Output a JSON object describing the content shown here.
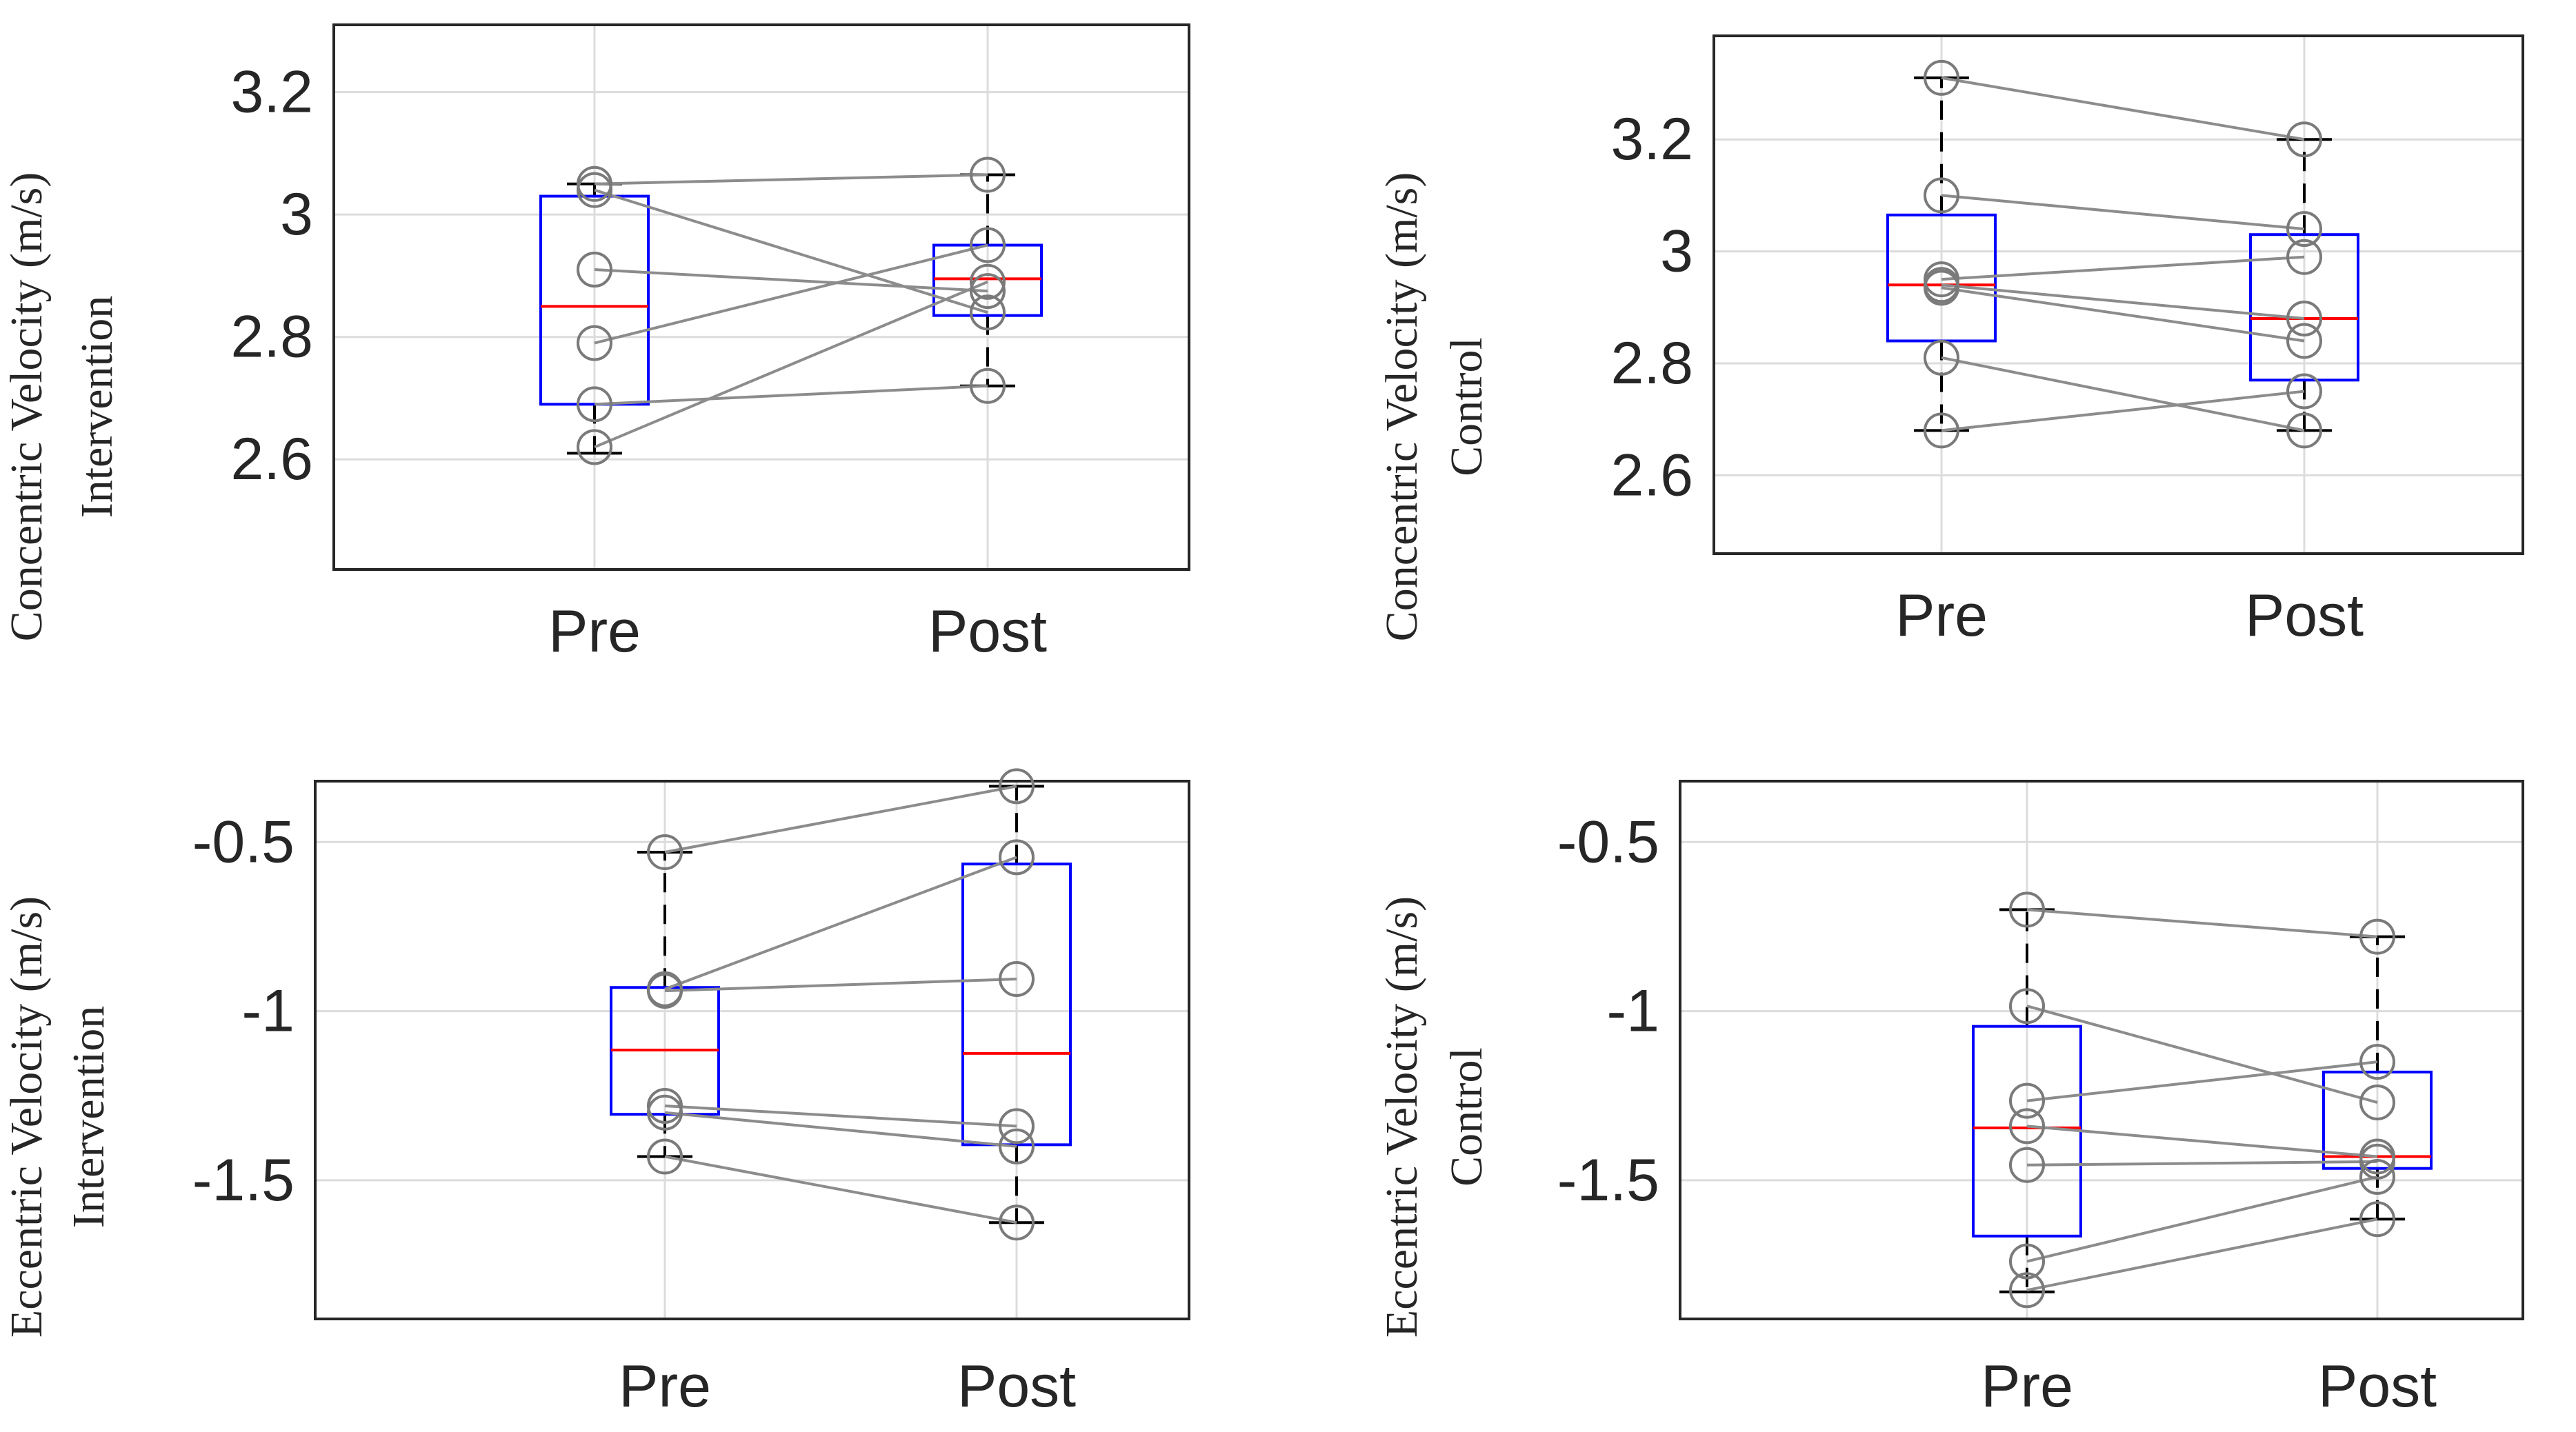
{
  "chart_data": [
    {
      "type": "box",
      "id": "ci",
      "ylabel": [
        "Concentric Velocity (m/s)",
        "Intervention"
      ],
      "categories": [
        "Pre",
        "Post"
      ],
      "ylim": [
        2.42,
        3.31
      ],
      "yticks": [
        2.6,
        2.8,
        3,
        3.2
      ],
      "ytick_labels": [
        "2.6",
        "2.8",
        "3",
        "3.2"
      ],
      "grid": true,
      "boxes": [
        {
          "q1": 2.69,
          "median": 2.85,
          "q3": 3.03,
          "whisker_low": 2.61,
          "whisker_high": 3.05
        },
        {
          "q1": 2.835,
          "median": 2.895,
          "q3": 2.95,
          "whisker_low": 2.72,
          "whisker_high": 3.065
        }
      ],
      "subjects": [
        {
          "pre": 3.04,
          "post": 2.84
        },
        {
          "pre": 3.05,
          "post": 3.065
        },
        {
          "pre": 2.91,
          "post": 2.875
        },
        {
          "pre": 2.79,
          "post": 2.95
        },
        {
          "pre": 2.69,
          "post": 2.72
        },
        {
          "pre": 2.62,
          "post": 2.89
        }
      ]
    },
    {
      "type": "box",
      "id": "cc",
      "ylabel": [
        "Concentric Velocity (m/s)",
        "Control"
      ],
      "categories": [
        "Pre",
        "Post"
      ],
      "ylim": [
        2.46,
        3.385
      ],
      "yticks": [
        2.6,
        2.8,
        3,
        3.2
      ],
      "ytick_labels": [
        "2.6",
        "2.8",
        "3",
        "3.2"
      ],
      "grid": true,
      "boxes": [
        {
          "q1": 2.84,
          "median": 2.94,
          "q3": 3.065,
          "whisker_low": 2.68,
          "whisker_high": 3.31
        },
        {
          "q1": 2.77,
          "median": 2.88,
          "q3": 3.03,
          "whisker_low": 2.68,
          "whisker_high": 3.2
        }
      ],
      "subjects": [
        {
          "pre": 3.31,
          "post": 3.2
        },
        {
          "pre": 3.1,
          "post": 3.04
        },
        {
          "pre": 2.95,
          "post": 2.99
        },
        {
          "pre": 2.935,
          "post": 2.84
        },
        {
          "pre": 2.94,
          "post": 2.88
        },
        {
          "pre": 2.81,
          "post": 2.68
        },
        {
          "pre": 2.68,
          "post": 2.75
        }
      ]
    },
    {
      "type": "box",
      "id": "ei",
      "ylabel": [
        "Eccentric Velocity (m/s)",
        "Intervention"
      ],
      "categories": [
        "Pre",
        "Post"
      ],
      "ylim": [
        -1.91,
        -0.32
      ],
      "yticks": [
        -1.5,
        -1,
        -0.5
      ],
      "ytick_labels": [
        "-1.5",
        "-1",
        "-0.5"
      ],
      "grid": true,
      "boxes": [
        {
          "q1": -1.305,
          "median": -1.115,
          "q3": -0.93,
          "whisker_low": -1.43,
          "whisker_high": -0.53
        },
        {
          "q1": -1.395,
          "median": -1.125,
          "q3": -0.565,
          "whisker_low": -1.625,
          "whisker_high": -0.335
        }
      ],
      "subjects": [
        {
          "pre": -0.53,
          "post": -0.335
        },
        {
          "pre": -0.935,
          "post": -0.545
        },
        {
          "pre": -0.94,
          "post": -0.905
        },
        {
          "pre": -1.28,
          "post": -1.34
        },
        {
          "pre": -1.3,
          "post": -1.4
        },
        {
          "pre": -1.43,
          "post": -1.625
        }
      ]
    },
    {
      "type": "box",
      "id": "ec",
      "ylabel": [
        "Eccentric Velocity (m/s)",
        "Control"
      ],
      "categories": [
        "Pre",
        "Post"
      ],
      "ylim": [
        -1.91,
        -0.32
      ],
      "yticks": [
        -1.5,
        -1,
        -0.5
      ],
      "ytick_labels": [
        "-1.5",
        "-1",
        "-0.5"
      ],
      "grid": true,
      "boxes": [
        {
          "q1": -1.665,
          "median": -1.345,
          "q3": -1.045,
          "whisker_low": -1.83,
          "whisker_high": -0.7
        },
        {
          "q1": -1.465,
          "median": -1.43,
          "q3": -1.18,
          "whisker_low": -1.615,
          "whisker_high": -0.78
        }
      ],
      "subjects": [
        {
          "pre": -0.7,
          "post": -0.78
        },
        {
          "pre": -0.985,
          "post": -1.27
        },
        {
          "pre": -1.265,
          "post": -1.15
        },
        {
          "pre": -1.34,
          "post": -1.43
        },
        {
          "pre": -1.455,
          "post": -1.445
        },
        {
          "pre": -1.74,
          "post": -1.49
        },
        {
          "pre": -1.825,
          "post": -1.615
        }
      ]
    }
  ]
}
